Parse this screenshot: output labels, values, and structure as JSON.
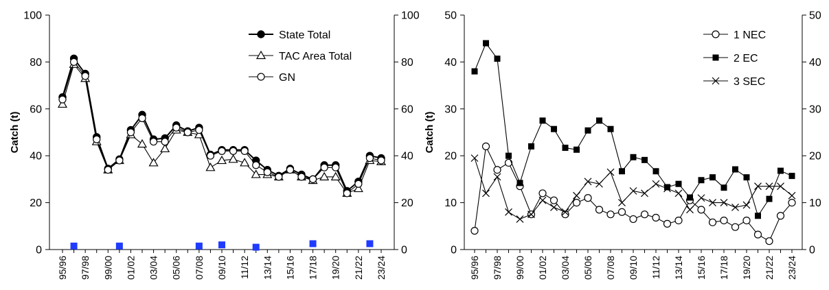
{
  "chart_data": [
    {
      "type": "line",
      "title": "",
      "ylabel": "Catch (t)",
      "xlabel": "",
      "ylim": [
        0,
        100
      ],
      "yticks": [
        0,
        20,
        40,
        60,
        80,
        100
      ],
      "ylim_right": [
        0,
        100
      ],
      "grid": false,
      "legend_position": "top-right",
      "x_tick_labels": [
        "95/96",
        "97/98",
        "99/00",
        "01/02",
        "03/04",
        "05/06",
        "07/08",
        "09/10",
        "11/12",
        "13/14",
        "15/16",
        "17/18",
        "19/20",
        "21/22",
        "23/24"
      ],
      "seasons": [
        "95/96",
        "96/97",
        "97/98",
        "98/99",
        "99/00",
        "00/01",
        "01/02",
        "02/03",
        "03/04",
        "04/05",
        "05/06",
        "06/07",
        "07/08",
        "08/09",
        "09/10",
        "10/11",
        "11/12",
        "12/13",
        "13/14",
        "14/15",
        "15/16",
        "16/17",
        "17/18",
        "18/19",
        "19/20",
        "20/21",
        "21/22",
        "22/23",
        "23/24"
      ],
      "series": [
        {
          "name": "State Total",
          "marker": "filled-circle",
          "values": [
            65,
            81.5,
            75,
            48,
            34.5,
            38.5,
            51,
            57.5,
            47,
            47.5,
            53,
            50.5,
            52,
            40.5,
            42.5,
            42.5,
            42.5,
            38,
            34,
            31.5,
            34.5,
            32,
            30,
            36,
            36,
            25,
            29,
            40,
            39
          ]
        },
        {
          "name": "TAC Area Total",
          "marker": "open-triangle",
          "values": [
            62,
            79,
            73,
            46,
            34,
            38,
            49,
            45,
            37,
            43,
            51,
            50,
            49,
            35,
            38,
            38.5,
            37,
            32,
            32,
            31,
            34,
            31,
            29.5,
            31,
            31,
            24,
            26,
            38,
            37.5
          ]
        },
        {
          "name": "GN",
          "marker": "open-circle",
          "values": [
            64,
            80,
            74,
            47,
            34,
            38,
            50,
            56,
            46,
            46,
            52,
            50,
            51,
            40,
            42,
            42,
            42,
            36,
            33,
            31,
            34,
            31,
            30,
            35,
            35,
            24,
            28,
            39,
            38
          ]
        }
      ],
      "secondary": {
        "color": "#1f3bff",
        "marker": "filled-square",
        "points": [
          {
            "x": "96/97",
            "y": 1.5
          },
          {
            "x": "00/01",
            "y": 1.5
          },
          {
            "x": "07/08",
            "y": 1.5
          },
          {
            "x": "09/10",
            "y": 2
          },
          {
            "x": "12/13",
            "y": 1
          },
          {
            "x": "17/18",
            "y": 2.5
          },
          {
            "x": "22/23",
            "y": 2.5
          }
        ]
      }
    },
    {
      "type": "line",
      "title": "",
      "ylabel": "Catch (t)",
      "xlabel": "",
      "ylim": [
        0,
        50
      ],
      "yticks": [
        0,
        10,
        20,
        30,
        40,
        50
      ],
      "ylim_right": [
        0,
        50
      ],
      "grid": false,
      "legend_position": "top-right",
      "x_tick_labels": [
        "95/96",
        "97/98",
        "99/00",
        "01/02",
        "03/04",
        "05/06",
        "07/08",
        "09/10",
        "11/12",
        "13/14",
        "15/16",
        "17/18",
        "19/20",
        "21/22",
        "23/24"
      ],
      "seasons": [
        "95/96",
        "96/97",
        "97/98",
        "98/99",
        "99/00",
        "00/01",
        "01/02",
        "02/03",
        "03/04",
        "04/05",
        "05/06",
        "06/07",
        "07/08",
        "08/09",
        "09/10",
        "10/11",
        "11/12",
        "12/13",
        "13/14",
        "14/15",
        "15/16",
        "16/17",
        "17/18",
        "18/19",
        "19/20",
        "20/21",
        "21/22",
        "22/23",
        "23/24"
      ],
      "series": [
        {
          "name": "1 NEC",
          "marker": "open-circle",
          "values": [
            4,
            22,
            17,
            18.5,
            13.5,
            7.5,
            12,
            10.5,
            7.5,
            10,
            11,
            8.5,
            7.5,
            8,
            6.5,
            7.5,
            6.8,
            5.5,
            6.2,
            10.5,
            8.5,
            5.8,
            6.2,
            4.8,
            6.2,
            3.2,
            1.8,
            7.2,
            10
          ]
        },
        {
          "name": "2 EC",
          "marker": "filled-square",
          "values": [
            38,
            44,
            40.7,
            20,
            14.2,
            22,
            27.5,
            25.7,
            21.7,
            21.3,
            25.4,
            27.5,
            25.7,
            16.7,
            19.7,
            19.1,
            16.7,
            13.3,
            14,
            11.1,
            14.8,
            15.4,
            13.2,
            17.1,
            15.4,
            7.2,
            10.8,
            16.8,
            15.7
          ]
        },
        {
          "name": "3 SEC",
          "marker": "cross",
          "values": [
            19.5,
            12,
            15.5,
            8,
            6.5,
            7.5,
            10.5,
            9,
            8,
            11.5,
            14.5,
            14,
            16.5,
            10,
            12.5,
            12,
            14,
            13,
            12,
            8.5,
            11,
            10,
            10,
            9,
            9.5,
            13.5,
            13.5,
            13.5,
            11.5
          ]
        }
      ]
    }
  ]
}
